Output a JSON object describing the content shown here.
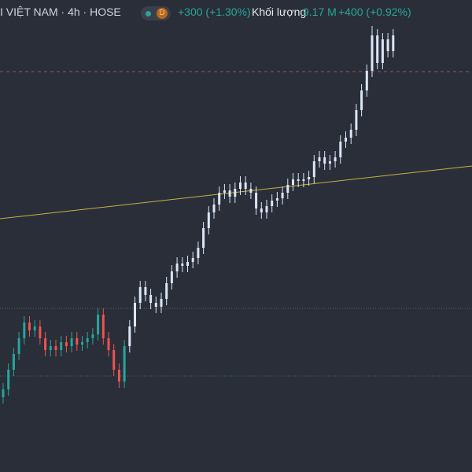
{
  "header": {
    "symbol": "I VIỆT NAM · 4h · HOSE",
    "badge": "D",
    "change": "+300 (+1.30%)",
    "volume_label": "Khối lượng",
    "volume": "9.17 M",
    "volume_change": "+400 (+0.92%)"
  },
  "chart_data": {
    "type": "candlestick",
    "ylim": [
      0,
      600
    ],
    "segments": [
      {
        "color_up": "#26a69a",
        "color_down": "#ef5350",
        "candles": [
          [
            95,
            113,
            87,
            105
          ],
          [
            105,
            138,
            97,
            130
          ],
          [
            130,
            158,
            122,
            150
          ],
          [
            150,
            178,
            142,
            170
          ],
          [
            170,
            198,
            162,
            190
          ],
          [
            190,
            198,
            172,
            180
          ],
          [
            180,
            193,
            172,
            185
          ],
          [
            185,
            193,
            162,
            170
          ],
          [
            170,
            178,
            147,
            155
          ],
          [
            155,
            168,
            147,
            160
          ],
          [
            160,
            168,
            147,
            155
          ],
          [
            155,
            173,
            147,
            165
          ],
          [
            165,
            173,
            152,
            160
          ],
          [
            160,
            178,
            152,
            170
          ],
          [
            170,
            178,
            154,
            162
          ],
          [
            162,
            173,
            154,
            165
          ],
          [
            165,
            178,
            157,
            170
          ],
          [
            170,
            183,
            162,
            175
          ],
          [
            175,
            208,
            167,
            200
          ],
          [
            200,
            208,
            162,
            170
          ],
          [
            170,
            178,
            147,
            155
          ],
          [
            155,
            163,
            122,
            130
          ],
          [
            130,
            138,
            107,
            115
          ],
          [
            115,
            168,
            107,
            160
          ]
        ]
      },
      {
        "color_up": "#dbe6f7",
        "color_down": "#dbe6f7",
        "candles": [
          [
            160,
            193,
            152,
            185
          ],
          [
            185,
            223,
            177,
            215
          ],
          [
            215,
            243,
            207,
            235
          ],
          [
            235,
            243,
            217,
            225
          ],
          [
            225,
            233,
            207,
            215
          ],
          [
            215,
            223,
            202,
            210
          ],
          [
            210,
            228,
            202,
            220
          ],
          [
            220,
            248,
            212,
            240
          ],
          [
            240,
            263,
            232,
            255
          ],
          [
            255,
            273,
            247,
            265
          ],
          [
            265,
            273,
            254,
            262
          ],
          [
            262,
            275,
            254,
            267
          ],
          [
            267,
            280,
            259,
            272
          ],
          [
            272,
            293,
            264,
            285
          ],
          [
            285,
            318,
            277,
            310
          ],
          [
            310,
            338,
            302,
            330
          ],
          [
            330,
            348,
            322,
            340
          ],
          [
            340,
            363,
            332,
            355
          ],
          [
            355,
            366,
            347,
            358
          ],
          [
            358,
            366,
            342,
            350
          ],
          [
            350,
            368,
            342,
            360
          ],
          [
            360,
            376,
            352,
            368
          ],
          [
            368,
            376,
            352,
            360
          ],
          [
            360,
            368,
            347,
            355
          ],
          [
            355,
            363,
            327,
            335
          ],
          [
            335,
            343,
            322,
            330
          ],
          [
            330,
            346,
            322,
            338
          ],
          [
            338,
            353,
            330,
            345
          ],
          [
            345,
            356,
            337,
            348
          ],
          [
            348,
            363,
            340,
            355
          ],
          [
            355,
            373,
            347,
            365
          ],
          [
            365,
            380,
            357,
            372
          ],
          [
            372,
            380,
            362,
            370
          ],
          [
            370,
            380,
            362,
            372
          ],
          [
            372,
            383,
            364,
            375
          ],
          [
            375,
            403,
            367,
            395
          ],
          [
            395,
            408,
            387,
            400
          ],
          [
            400,
            408,
            384,
            392
          ],
          [
            392,
            403,
            384,
            395
          ],
          [
            395,
            408,
            387,
            400
          ],
          [
            400,
            428,
            392,
            420
          ],
          [
            420,
            433,
            412,
            425
          ],
          [
            425,
            443,
            417,
            435
          ],
          [
            435,
            468,
            427,
            460
          ],
          [
            460,
            493,
            452,
            485
          ],
          [
            485,
            518,
            477,
            510
          ],
          [
            510,
            567,
            502,
            555
          ],
          [
            555,
            563,
            512,
            520
          ],
          [
            520,
            558,
            512,
            550
          ],
          [
            550,
            558,
            527,
            535
          ],
          [
            535,
            563,
            527,
            555
          ]
        ]
      }
    ]
  }
}
